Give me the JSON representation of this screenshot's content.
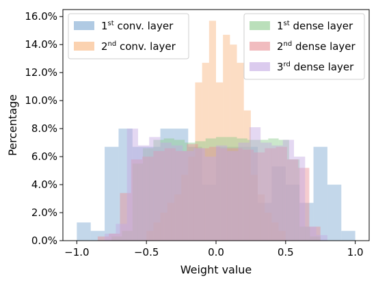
{
  "chart_data": {
    "type": "histogram",
    "xlabel": "Weight value",
    "ylabel": "Percentage",
    "xlim": [
      -1.1,
      1.1
    ],
    "ylim": [
      0,
      0.165
    ],
    "xticks": [
      -1.0,
      -0.5,
      0.0,
      0.5,
      1.0
    ],
    "xtick_labels": [
      "−1.0",
      "−0.5",
      "0.0",
      "0.5",
      "1.0"
    ],
    "yticks": [
      0,
      0.02,
      0.04,
      0.06,
      0.08,
      0.1,
      0.12,
      0.14,
      0.16
    ],
    "ytick_labels": [
      "0.0%",
      "2.0%",
      "4.0%",
      "6.0%",
      "8.0%",
      "10.0%",
      "12.0%",
      "14.0%",
      "16.0%"
    ],
    "grid": false,
    "bin_edges": [
      -1.0,
      -0.9,
      -0.8,
      -0.7,
      -0.6,
      -0.5,
      -0.4,
      -0.3,
      -0.2,
      -0.1,
      0.0,
      0.1,
      0.2,
      0.3,
      0.4,
      0.5,
      0.6,
      0.7,
      0.8,
      0.9,
      1.0
    ],
    "series": [
      {
        "name_pre": "1",
        "name_sup": "st",
        "name_post": " conv. layer",
        "color": "#7ba7d1",
        "opacity": 0.45,
        "edges": [
          -1.0,
          -0.9,
          -0.8,
          -0.7,
          -0.6,
          -0.5,
          -0.4,
          -0.3,
          -0.2,
          -0.1,
          0.0,
          0.1,
          0.2,
          0.3,
          0.4,
          0.5,
          0.6,
          0.7,
          0.8,
          0.9,
          1.0
        ],
        "values": [
          0.013,
          0.007,
          0.067,
          0.08,
          0.067,
          0.067,
          0.08,
          0.08,
          0.067,
          0.04,
          0.067,
          0.067,
          0.067,
          0.027,
          0.053,
          0.04,
          0.027,
          0.067,
          0.04,
          0.007
        ]
      },
      {
        "name_pre": "2",
        "name_sup": "nd",
        "name_post": " conv. layer",
        "color": "#f9b47c",
        "opacity": 0.45,
        "edges": [
          -0.5,
          -0.45,
          -0.4,
          -0.35,
          -0.3,
          -0.25,
          -0.2,
          -0.15,
          -0.1,
          -0.05,
          0.0,
          0.05,
          0.1,
          0.15,
          0.2,
          0.25,
          0.3,
          0.35,
          0.4,
          0.45,
          0.5
        ],
        "values": [
          0.007,
          0.013,
          0.02,
          0.027,
          0.033,
          0.047,
          0.06,
          0.113,
          0.127,
          0.157,
          0.113,
          0.147,
          0.14,
          0.127,
          0.093,
          0.047,
          0.033,
          0.02,
          0.013,
          0.007
        ]
      },
      {
        "name_pre": "1",
        "name_sup": "st",
        "name_post": " dense layer",
        "color": "#8cc98c",
        "opacity": 0.45,
        "edges": [
          -0.75,
          -0.675,
          -0.6,
          -0.525,
          -0.45,
          -0.375,
          -0.3,
          -0.225,
          -0.15,
          -0.075,
          0.0,
          0.075,
          0.15,
          0.225,
          0.3,
          0.375,
          0.45,
          0.525,
          0.6,
          0.675,
          0.75
        ],
        "values": [
          0.003,
          0.007,
          0.055,
          0.066,
          0.072,
          0.073,
          0.072,
          0.07,
          0.071,
          0.073,
          0.074,
          0.074,
          0.073,
          0.072,
          0.072,
          0.073,
          0.072,
          0.058,
          0.01,
          0.003
        ]
      },
      {
        "name_pre": "2",
        "name_sup": "nd",
        "name_post": " dense layer",
        "color": "#e88f95",
        "opacity": 0.45,
        "edges": [
          -0.85,
          -0.77,
          -0.69,
          -0.61,
          -0.53,
          -0.45,
          -0.37,
          -0.29,
          -0.21,
          -0.13,
          -0.05,
          0.03,
          0.11,
          0.19,
          0.27,
          0.35,
          0.43,
          0.51,
          0.59,
          0.67,
          0.75
        ],
        "values": [
          0.003,
          0.005,
          0.034,
          0.058,
          0.06,
          0.064,
          0.066,
          0.064,
          0.069,
          0.066,
          0.067,
          0.066,
          0.066,
          0.065,
          0.063,
          0.066,
          0.067,
          0.058,
          0.052,
          0.01
        ]
      },
      {
        "name_pre": "3",
        "name_sup": "rd",
        "name_post": " dense layer",
        "color": "#c3a9e2",
        "opacity": 0.45,
        "edges": [
          -0.8,
          -0.72,
          -0.64,
          -0.56,
          -0.48,
          -0.4,
          -0.32,
          -0.24,
          -0.16,
          -0.08,
          0.0,
          0.08,
          0.16,
          0.24,
          0.32,
          0.4,
          0.48,
          0.56,
          0.64,
          0.72,
          0.8
        ],
        "values": [
          0.005,
          0.012,
          0.08,
          0.068,
          0.074,
          0.07,
          0.068,
          0.064,
          0.066,
          0.06,
          0.068,
          0.064,
          0.07,
          0.081,
          0.07,
          0.068,
          0.072,
          0.06,
          0.01,
          0.004
        ]
      }
    ],
    "legends": [
      {
        "placement": "top-left",
        "series_indices": [
          0,
          1
        ]
      },
      {
        "placement": "top-right",
        "series_indices": [
          2,
          3,
          4
        ]
      }
    ]
  }
}
